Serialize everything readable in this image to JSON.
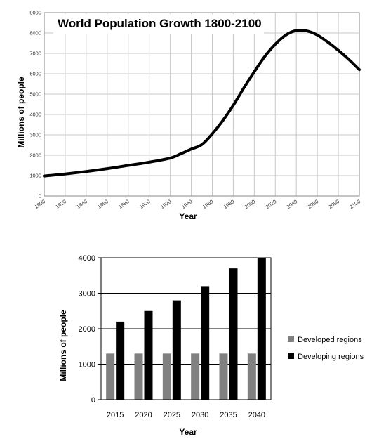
{
  "chart_data": [
    {
      "type": "line",
      "title": "World Population Growth 1800-2100",
      "xlabel": "Year",
      "ylabel": "Millions of people",
      "xlim": [
        1800,
        2100
      ],
      "ylim": [
        0,
        9000
      ],
      "x_ticks": [
        "1800",
        "1820",
        "1840",
        "1860",
        "1880",
        "1900",
        "1920",
        "1940",
        "1960",
        "1980",
        "2000",
        "2020",
        "2040",
        "2060",
        "2080",
        "2100"
      ],
      "y_ticks": [
        "0",
        "1000",
        "2000",
        "3000",
        "4000",
        "5000",
        "6000",
        "7000",
        "8000",
        "9000"
      ],
      "grid": true,
      "series": [
        {
          "x": [
            1800,
            1820,
            1840,
            1860,
            1880,
            1900,
            1920,
            1930,
            1940,
            1950,
            1960,
            1970,
            1980,
            1990,
            2000,
            2010,
            2020,
            2030,
            2040,
            2050,
            2060,
            2070,
            2080,
            2090,
            2100
          ],
          "values": [
            980,
            1080,
            1200,
            1340,
            1500,
            1660,
            1860,
            2070,
            2300,
            2520,
            3050,
            3700,
            4450,
            5300,
            6100,
            6850,
            7450,
            7900,
            8120,
            8100,
            7900,
            7550,
            7150,
            6700,
            6200
          ],
          "color": "#000000"
        }
      ]
    },
    {
      "type": "bar",
      "xlabel": "Year",
      "ylabel": "Millions of people",
      "ylim": [
        0,
        4000
      ],
      "y_ticks": [
        "0",
        "1000",
        "2000",
        "3000",
        "4000"
      ],
      "categories": [
        "2015",
        "2020",
        "2025",
        "2030",
        "2035",
        "2040"
      ],
      "legend": "right",
      "series": [
        {
          "name": "Developed regions",
          "values": [
            1300,
            1300,
            1300,
            1300,
            1300,
            1300
          ],
          "color": "#808080"
        },
        {
          "name": "Developing regions",
          "values": [
            2200,
            2500,
            2800,
            3200,
            3700,
            4000
          ],
          "color": "#000000"
        }
      ]
    }
  ]
}
